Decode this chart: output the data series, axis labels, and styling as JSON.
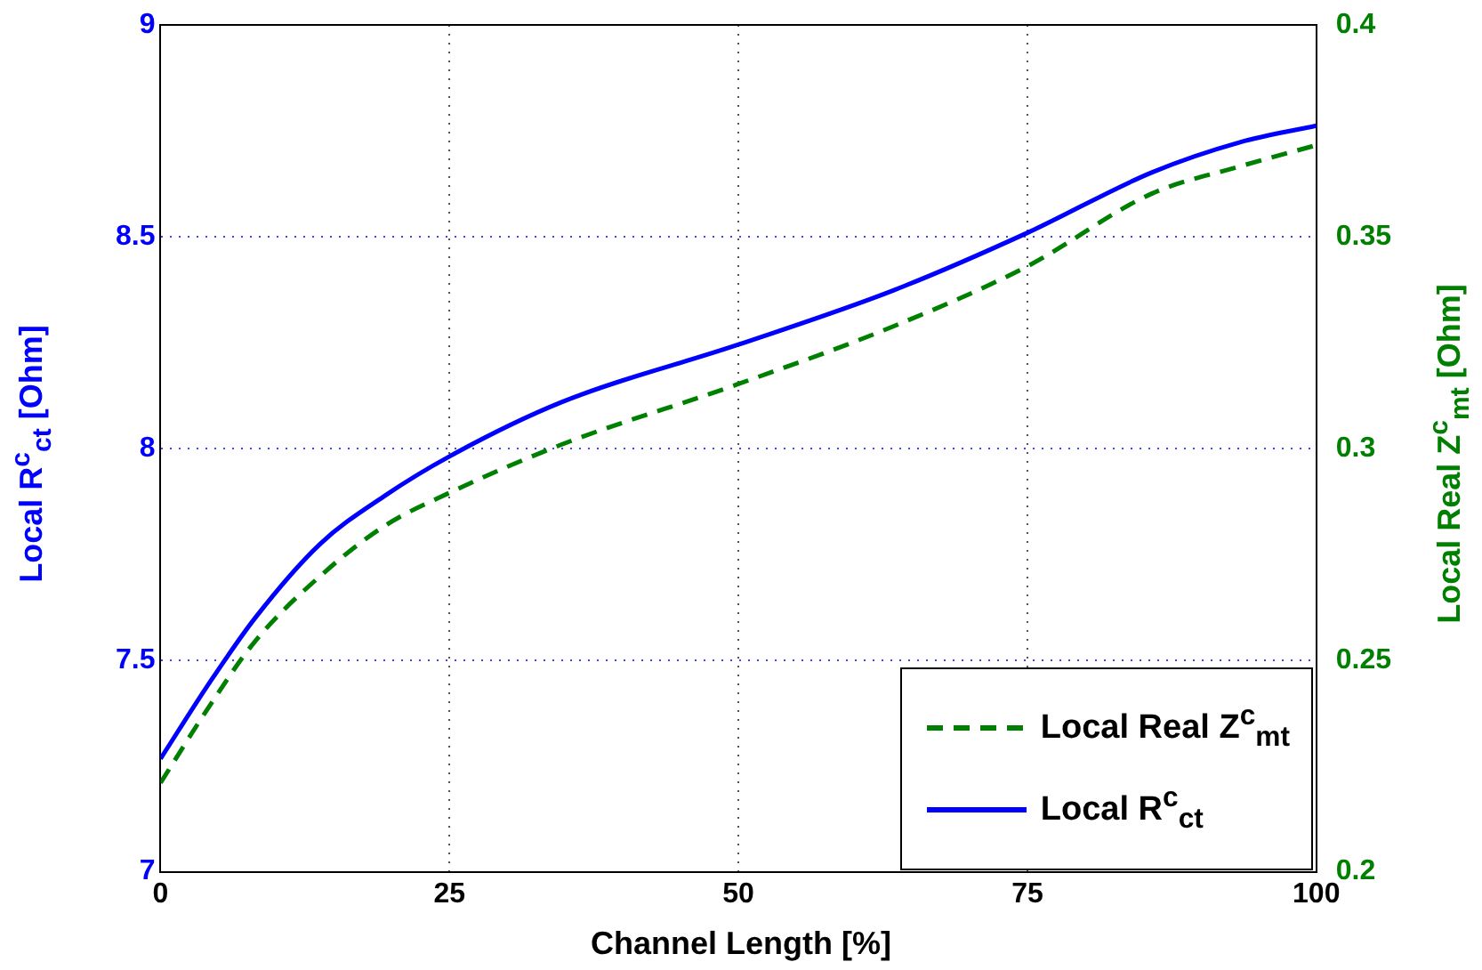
{
  "chart_data": {
    "type": "line",
    "xlabel": "Channel Length [%]",
    "ylabel": "Local R$^{c}$$_{ct}$ [Ohm]",
    "y2label": "Local Real Z$^{c}$$_{mt}$ [Ohm]",
    "xlim": [
      0,
      100
    ],
    "xticks": [
      0,
      25,
      50,
      75,
      100
    ],
    "ylim": [
      7,
      9
    ],
    "yticks": [
      7,
      7.5,
      8,
      8.5,
      9
    ],
    "y2lim": [
      0.2,
      0.4
    ],
    "y2ticks": [
      0.2,
      0.25,
      0.3,
      0.35,
      0.4
    ],
    "grid": true,
    "legend": "bottom right",
    "series": [
      {
        "name": "Local Real Z$^{c}$$_{mt}$",
        "color": "#008000",
        "axis": "y2",
        "line_style": "dashed",
        "x": [
          0,
          4.2,
          8.2,
          14.3,
          19.4,
          25,
          34.7,
          50,
          63.4,
          75,
          85.8,
          93.4,
          100
        ],
        "values": [
          0.221,
          0.239,
          0.2545,
          0.271,
          0.2817,
          0.2895,
          0.3009,
          0.3152,
          0.3288,
          0.343,
          0.3602,
          0.3666,
          0.3716
        ]
      },
      {
        "name": "Local R$^{c}$$_{ct}$",
        "color": "#0000ff",
        "axis": "y",
        "line_style": "solid",
        "x": [
          0,
          4.2,
          8.2,
          13.8,
          19.4,
          25,
          34.7,
          50,
          63.4,
          75,
          85.8,
          93.4,
          100
        ],
        "values": [
          7.267,
          7.445,
          7.6,
          7.774,
          7.888,
          7.981,
          8.109,
          8.245,
          8.373,
          8.509,
          8.652,
          8.723,
          8.762
        ]
      }
    ]
  }
}
